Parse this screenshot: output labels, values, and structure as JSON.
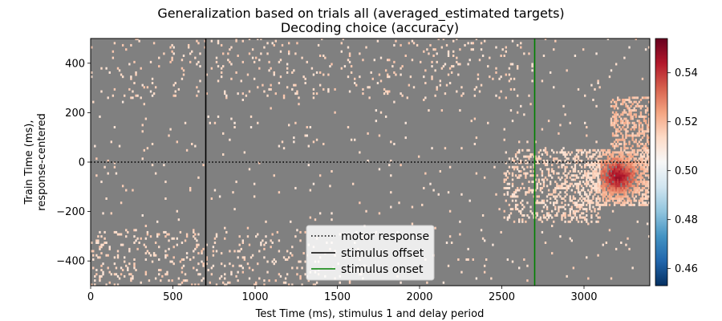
{
  "chart_data": {
    "type": "heatmap",
    "title_line1": "Generalization based on trials all (averaged_estimated targets)",
    "title_line2": "Decoding choice (accuracy)",
    "xlabel": "Test Time (ms), stimulus 1 and delay period",
    "ylabel_line1": "Train Time (ms),",
    "ylabel_line2": "response-centered",
    "xlim": [
      0,
      3400
    ],
    "ylim": [
      -500,
      500
    ],
    "x_ticks": [
      0,
      500,
      1000,
      1500,
      2000,
      2500,
      3000
    ],
    "x_tick_labels": [
      "0",
      "500",
      "1000",
      "1500",
      "2000",
      "2500",
      "3000"
    ],
    "y_ticks": [
      -400,
      -200,
      0,
      200,
      400
    ],
    "y_tick_labels": [
      "−400",
      "−200",
      "0",
      "200",
      "400"
    ],
    "colorbar": {
      "colormap": "RdBu_r",
      "vmin": 0.453,
      "vmax": 0.554,
      "ticks": [
        0.46,
        0.48,
        0.5,
        0.52,
        0.54
      ],
      "tick_labels": [
        "0.46",
        "0.48",
        "0.50",
        "0.52",
        "0.54"
      ]
    },
    "nonsignificant_color": "#808080",
    "significant_regions": [
      {
        "name": "late-test early-train cluster",
        "x_range": [
          3000,
          3400
        ],
        "y_range": [
          -180,
          50
        ],
        "peak_accuracy": 0.545,
        "peak_x": 3200,
        "peak_y": -60
      },
      {
        "name": "late-test upper band",
        "x_range": [
          3150,
          3400
        ],
        "y_range": [
          50,
          260
        ],
        "typical_accuracy": 0.52
      },
      {
        "name": "diagonal band",
        "x_range": [
          2500,
          3100
        ],
        "y_range": [
          -250,
          50
        ],
        "typical_accuracy": 0.515
      },
      {
        "name": "early-test bottom strip",
        "x_range": [
          0,
          1700
        ],
        "y_range": [
          -500,
          -280
        ],
        "typical_accuracy": 0.515
      },
      {
        "name": "early-test top strip",
        "x_range": [
          100,
          2700
        ],
        "y_range": [
          250,
          500
        ],
        "typical_accuracy": 0.515
      }
    ],
    "reference_lines": [
      {
        "label": "motor response",
        "orientation": "horizontal",
        "value": 0,
        "style": "dotted",
        "color": "#000000"
      },
      {
        "label": "stimulus offset",
        "orientation": "vertical",
        "value": 700,
        "style": "solid",
        "color": "#000000"
      },
      {
        "label": "stimulus onset",
        "orientation": "vertical",
        "value": 2700,
        "style": "solid",
        "color": "#008000"
      }
    ],
    "legend_position": "lower center"
  }
}
